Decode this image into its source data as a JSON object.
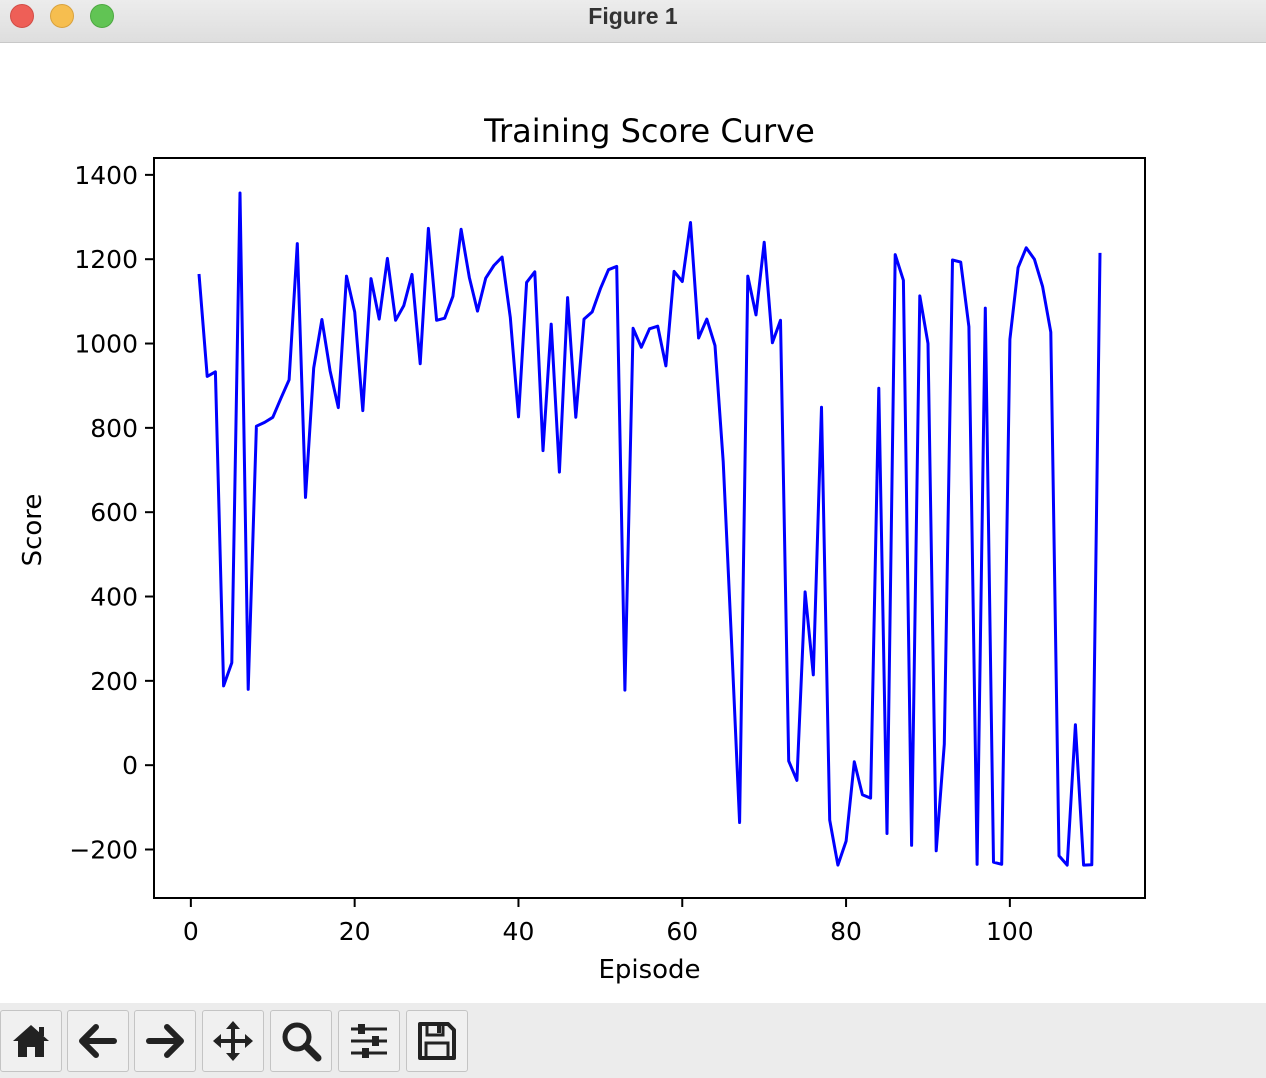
{
  "window": {
    "title": "Figure 1"
  },
  "toolbar": {
    "buttons": [
      {
        "icon": "home-icon"
      },
      {
        "icon": "back-arrow-icon"
      },
      {
        "icon": "forward-arrow-icon"
      },
      {
        "icon": "pan-icon"
      },
      {
        "icon": "zoom-icon"
      },
      {
        "icon": "configure-subplots-icon"
      },
      {
        "icon": "save-icon"
      }
    ]
  },
  "chart_data": {
    "type": "line",
    "title": "Training Score Curve",
    "xlabel": "Episode",
    "ylabel": "Score",
    "xlim": [
      -4.5,
      116.5
    ],
    "ylim": [
      -315,
      1440
    ],
    "xticks": [
      0,
      20,
      40,
      60,
      80,
      100
    ],
    "yticks": [
      -200,
      0,
      200,
      400,
      600,
      800,
      1000,
      1200,
      1400
    ],
    "ytick_labels": [
      "−200",
      "0",
      "200",
      "400",
      "600",
      "800",
      "1000",
      "1200",
      "1400"
    ],
    "grid": false,
    "line_color": "#0000ff",
    "series": [
      {
        "x": [
          1,
          2,
          3,
          4,
          5,
          6,
          7,
          8,
          9,
          10,
          11,
          12,
          13,
          14,
          15,
          16,
          17,
          18,
          19,
          20,
          21,
          22,
          23,
          24,
          25,
          26,
          27,
          28,
          29,
          30,
          31,
          32,
          33,
          34,
          35,
          36,
          37,
          38,
          39,
          40,
          41,
          42,
          43,
          44,
          45,
          46,
          47,
          48,
          49,
          50,
          51,
          52,
          53,
          54,
          55,
          56,
          57,
          58,
          59,
          60,
          61,
          62,
          63,
          64,
          65,
          66,
          67,
          68,
          69,
          70,
          71,
          72,
          73,
          74,
          75,
          76,
          77,
          78,
          79,
          80,
          81,
          82,
          83,
          84,
          85,
          86,
          87,
          88,
          89,
          90,
          91,
          92,
          93,
          94,
          95,
          96,
          97,
          98,
          99,
          100,
          101,
          102,
          103,
          104,
          105,
          106,
          107,
          108,
          109,
          110,
          111
        ],
        "values": [
          1165,
          922,
          933,
          188,
          243,
          1357,
          180,
          804,
          813,
          825,
          870,
          914,
          1237,
          635,
          942,
          1057,
          935,
          848,
          1160,
          1075,
          841,
          1154,
          1058,
          1202,
          1055,
          1090,
          1164,
          952,
          1273,
          1055,
          1060,
          1112,
          1271,
          1157,
          1077,
          1155,
          1185,
          1205,
          1062,
          826,
          1145,
          1170,
          746,
          1046,
          695,
          1109,
          825,
          1058,
          1075,
          1130,
          1175,
          1183,
          178,
          1036,
          991,
          1035,
          1041,
          947,
          1171,
          1147,
          1287,
          1013,
          1058,
          995,
          720,
          300,
          -136,
          1160,
          1068,
          1240,
          1002,
          1055,
          10,
          -36,
          411,
          214,
          849,
          -130,
          -237,
          -180,
          8,
          -70,
          -78,
          894,
          -162,
          1211,
          1150,
          -190,
          1113,
          1000,
          -203,
          50,
          1198,
          1193,
          1040,
          -235,
          1084,
          -230,
          -235,
          1010,
          1180,
          1227,
          1200,
          1135,
          1027,
          -215,
          -237,
          96,
          -237,
          -236,
          1215
        ]
      }
    ]
  }
}
